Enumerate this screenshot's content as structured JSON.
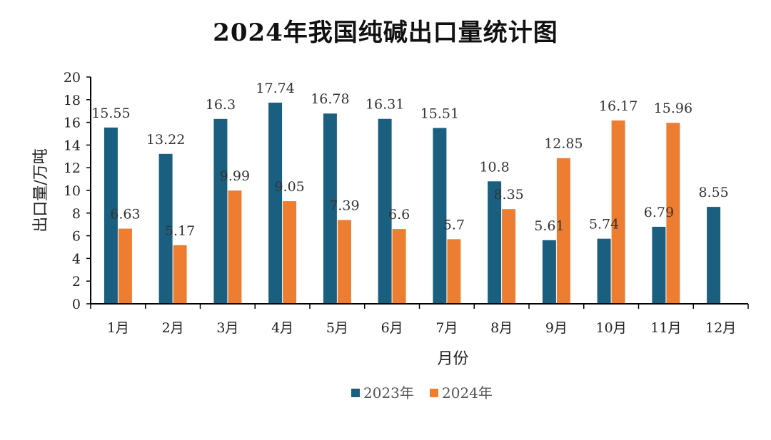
{
  "chart_data": {
    "type": "bar",
    "title": "2024年我国纯碱出口量统计图",
    "xlabel": "月份",
    "ylabel": "出口量/万吨",
    "ylim": [
      0,
      20
    ],
    "yticks": [
      0,
      2,
      4,
      6,
      8,
      10,
      12,
      14,
      16,
      18,
      20
    ],
    "grid": false,
    "legend_position": "bottom",
    "categories": [
      "1月",
      "2月",
      "3月",
      "4月",
      "5月",
      "6月",
      "7月",
      "8月",
      "9月",
      "10月",
      "11月",
      "12月"
    ],
    "series": [
      {
        "name": "2023年",
        "color": "#1b5f80",
        "values": [
          15.55,
          13.22,
          16.3,
          17.74,
          16.78,
          16.31,
          15.51,
          10.8,
          5.61,
          5.74,
          6.79,
          8.55
        ],
        "labels": [
          "15.55",
          "13.22",
          "16.3",
          "17.74",
          "16.78",
          "16.31",
          "15.51",
          "10.8",
          "5.61",
          "5.74",
          "6.79",
          "8.55"
        ]
      },
      {
        "name": "2024年",
        "color": "#ed7d31",
        "values": [
          6.63,
          5.17,
          9.99,
          9.05,
          7.39,
          6.6,
          5.7,
          8.35,
          12.85,
          16.17,
          15.96,
          null
        ],
        "labels": [
          "6.63",
          "5.17",
          "9.99",
          "9.05",
          "7.39",
          "6.6",
          "5.7",
          "8.35",
          "12.85",
          "16.17",
          "15.96",
          null
        ]
      }
    ]
  }
}
